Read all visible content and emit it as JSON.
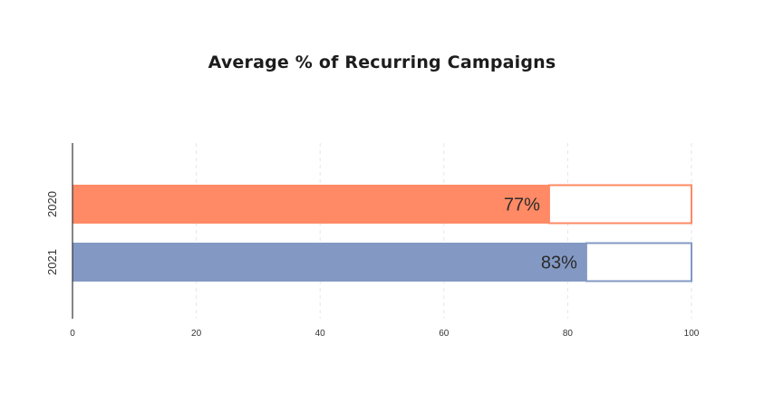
{
  "chart_data": {
    "type": "bar",
    "orientation": "horizontal",
    "stacked": true,
    "title": "Average % of Recurring Campaigns",
    "xlabel": "",
    "ylabel": "",
    "xlim": [
      0,
      100
    ],
    "x_ticks": [
      "0",
      "20",
      "40",
      "60",
      "80",
      "100"
    ],
    "categories": [
      "2020",
      "2021"
    ],
    "values": [
      77,
      83
    ],
    "data_labels": [
      "77%",
      "83%"
    ],
    "remainder_values": [
      23,
      17
    ],
    "colors": [
      "#ff8a65",
      "#8399c4"
    ],
    "remainder_fill": "#ffffff",
    "grid": "vertical dashed",
    "legend": "none"
  }
}
